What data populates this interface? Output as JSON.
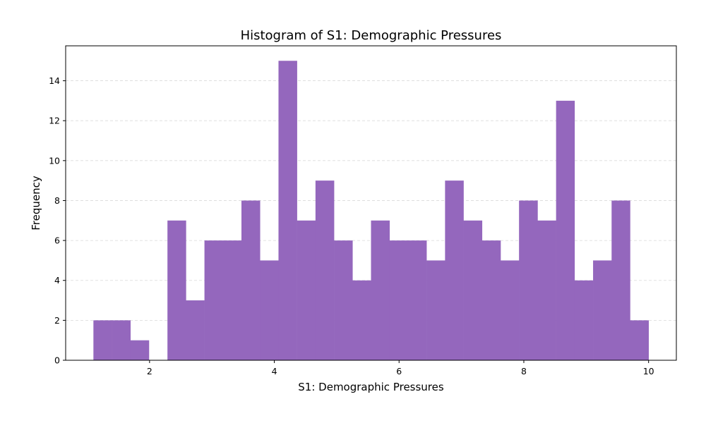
{
  "chart_data": {
    "type": "bar",
    "title": "Histogram of S1: Demographic Pressures",
    "xlabel": "S1: Demographic Pressures",
    "ylabel": "Frequency",
    "bin_edges": [
      1.1,
      1.397,
      1.693,
      1.99,
      2.287,
      2.583,
      2.88,
      3.177,
      3.473,
      3.77,
      4.067,
      4.363,
      4.66,
      4.957,
      5.253,
      5.55,
      5.847,
      6.143,
      6.44,
      6.737,
      7.033,
      7.33,
      7.627,
      7.923,
      8.22,
      8.517,
      8.813,
      9.11,
      9.407,
      9.703,
      10.0
    ],
    "values": [
      2,
      2,
      1,
      0,
      7,
      3,
      6,
      6,
      8,
      5,
      15,
      7,
      9,
      6,
      4,
      7,
      6,
      6,
      5,
      9,
      7,
      6,
      5,
      8,
      7,
      13,
      4,
      5,
      8,
      2
    ],
    "xlim": [
      0.655,
      10.445
    ],
    "ylim": [
      0,
      15.75
    ],
    "xticks": [
      2,
      4,
      6,
      8,
      10
    ],
    "yticks": [
      0,
      2,
      4,
      6,
      8,
      10,
      12,
      14
    ],
    "grid": "y-dashed",
    "bar_color": "#9467bd"
  }
}
